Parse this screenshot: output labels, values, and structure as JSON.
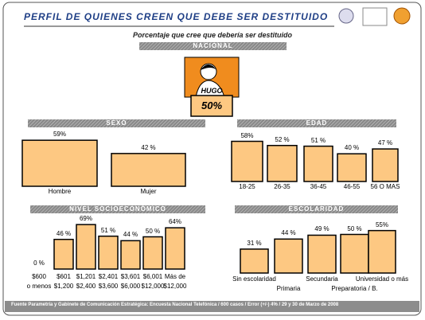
{
  "header": {
    "title": "PERFIL DE QUIENES CREEN QUE DEBE SER DESTITUIDO",
    "subtitle": "Porcentaje que cree que debería ser destituido",
    "source": "Fuente Parametría y Gabinete de Comunicación Estratégica: Encuesta Nacional Telefónica / 600 casos / Error (+/-) 4% / 29 y 30 de Marzo de 2008"
  },
  "chart_data": [
    {
      "type": "portrait",
      "title": "NACIONAL",
      "label": "HUGO",
      "values": [
        50
      ],
      "value_labels": [
        "50%"
      ],
      "color": "#f08c1e"
    },
    {
      "type": "bar",
      "title": "SEXO",
      "categories": [
        "Hombre",
        "Mujer"
      ],
      "values": [
        59,
        42
      ],
      "value_labels": [
        "59%",
        "42 %"
      ],
      "color": "#fdc882"
    },
    {
      "type": "bar",
      "title": "EDAD",
      "categories": [
        "18-25",
        "26-35",
        "36-45",
        "46-55",
        "56  O MAS"
      ],
      "values": [
        58,
        52,
        51,
        40,
        47
      ],
      "value_labels": [
        "58%",
        "52 %",
        "51 %",
        "40 %",
        "47 %"
      ],
      "color": "#fdc882"
    },
    {
      "type": "bar",
      "title": "NIVEL SOCIOECONÓMICO",
      "categories": [
        "$600\no menos",
        "$601\n$1,200",
        "$1,201\n$2,400",
        "$2,401\n$3,600",
        "$3,601\n$6,000",
        "$6,001\n$12,000",
        "Más de\n$12,000"
      ],
      "values": [
        0,
        46,
        69,
        51,
        44,
        50,
        64
      ],
      "value_labels": [
        "0 %",
        "46 %",
        "69%",
        "51 %",
        "44 %",
        "50 %",
        "64%"
      ],
      "color": "#fdc882"
    },
    {
      "type": "bar",
      "title": "ESCOLARIDAD",
      "categories": [
        "Sin escolaridad",
        "Primaria",
        "Secundaria",
        "Preparatoria / B.",
        "Universidad  o más"
      ],
      "values": [
        31,
        44,
        49,
        50,
        55
      ],
      "value_labels": [
        "31 %",
        "44 %",
        "49 %",
        "50 %",
        "55%"
      ],
      "color": "#fdc882"
    }
  ]
}
